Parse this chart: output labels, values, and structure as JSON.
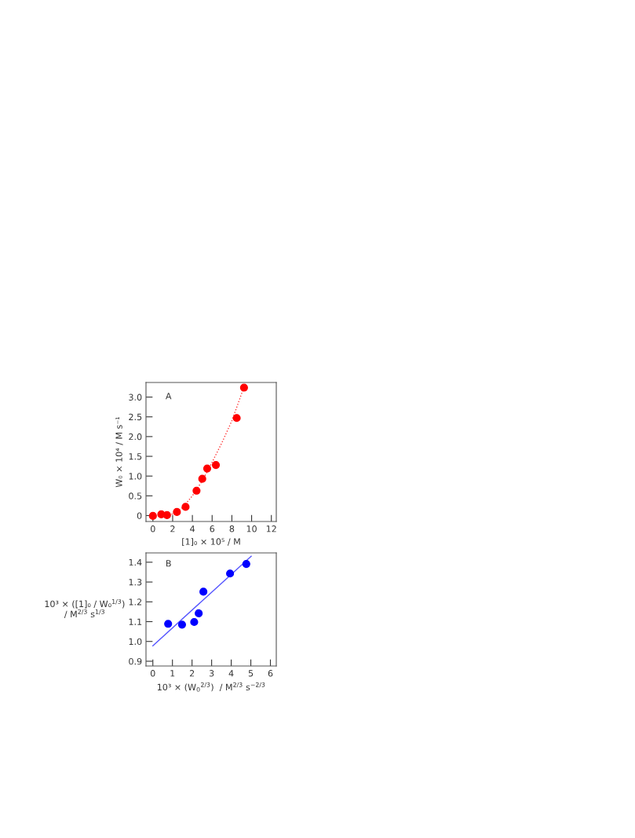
{
  "chart_data": [
    {
      "type": "scatter",
      "xlabel": "[1]₀ × 10⁵ / M",
      "ylabel": "W₀ × 10⁴ / M s⁻¹",
      "annotations": [
        "A"
      ],
      "xlim": [
        -0.7,
        12.5
      ],
      "ylim": [
        -0.15,
        3.37
      ],
      "xticks": [
        0,
        2,
        4,
        6,
        8,
        10,
        12
      ],
      "yticks": [
        {
          "value": 0,
          "label": "0"
        },
        0.5,
        {
          "value": 1,
          "label": "1.0"
        },
        1.5,
        {
          "value": 2,
          "label": "2.0"
        },
        2.5,
        {
          "value": 3,
          "label": "3.0"
        }
      ],
      "grid": false,
      "legend": false,
      "series": [
        {
          "marker": "circle",
          "color": "#ff0000",
          "x": [
            0,
            0.85,
            1.43,
            2.43,
            3.31,
            4.42,
            5.0,
            5.5,
            6.38,
            8.49,
            9.23
          ],
          "values": [
            -0.01,
            0.03,
            0.01,
            0.09,
            0.22,
            0.63,
            0.93,
            1.19,
            1.28,
            2.47,
            3.24
          ]
        },
        {
          "type": "line",
          "line_style": "dotted",
          "color": "#ff3333",
          "x": [
            1.9,
            3,
            4,
            5,
            6,
            7,
            8,
            9.25
          ],
          "values": [
            0.03,
            0.2,
            0.5,
            0.88,
            1.35,
            1.85,
            2.4,
            3.27
          ]
        }
      ]
    },
    {
      "type": "scatter",
      "xlabel": "10³ × (W$_{0}$$^{2/3}$)  / M$^{2/3}$ s$^{−2/3}$",
      "ylabel": "10³ × ([1]₀ / W₀$^{1/3}$)\n/ M$^{2/3}$ s$^{1/3}$",
      "annotations": [
        "B"
      ],
      "xlim": [
        -0.35,
        6.3
      ],
      "ylim": [
        0.876,
        1.447
      ],
      "xticks": [
        0,
        1,
        2,
        3,
        4,
        5,
        6
      ],
      "yticks": [
        0.9,
        {
          "value": 1,
          "label": "1.0"
        },
        1.1,
        1.2,
        1.3,
        1.4
      ],
      "grid": false,
      "legend": false,
      "series": [
        {
          "marker": "circle",
          "color": "#0000ff",
          "x": [
            0.78,
            1.49,
            2.11,
            2.34,
            2.58,
            3.94,
            4.77
          ],
          "values": [
            1.089,
            1.085,
            1.098,
            1.142,
            1.251,
            1.343,
            1.391
          ]
        },
        {
          "type": "line",
          "line_style": "solid",
          "color": "#5555ff",
          "x": [
            0,
            5.02
          ],
          "values": [
            0.978,
            1.43
          ]
        }
      ]
    }
  ]
}
